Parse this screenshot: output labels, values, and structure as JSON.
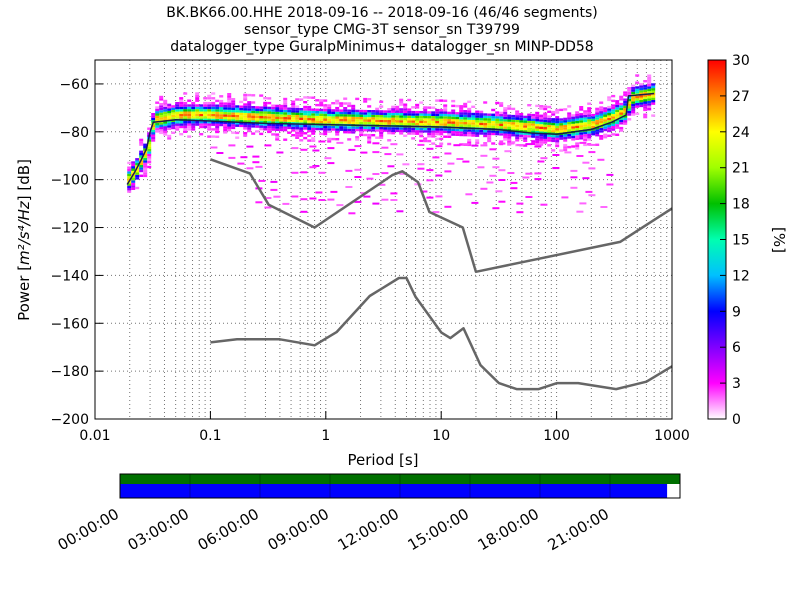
{
  "header": {
    "line1": "BK.BK66.00.HHE   2018-09-16 -- 2018-09-16  (46/46 segments)",
    "line2": "sensor_type CMG-3T sensor_sn T39799",
    "line3": "datalogger_type GuralpMinimus+ datalogger_sn MINP-DD58"
  },
  "chart_data": {
    "type": "heatmap",
    "description_free": true,
    "xlabel": "Period [s]",
    "ylabel_prefix": "Power [",
    "ylabel_math": "m²/s⁴/Hz",
    "ylabel_suffix": "] [dB]",
    "xscale": "log",
    "xlim": [
      0.01,
      1000
    ],
    "ylim": [
      -200,
      -50
    ],
    "x_ticks": [
      0.01,
      0.1,
      1,
      10,
      100,
      1000
    ],
    "x_tick_labels": [
      "0.01",
      "0.1",
      "1",
      "10",
      "100",
      "1000"
    ],
    "y_ticks": [
      -200,
      -180,
      -160,
      -140,
      -120,
      -100,
      -80,
      -60
    ],
    "y_tick_labels": [
      "−200",
      "−180",
      "−160",
      "−140",
      "−120",
      "−100",
      "−80",
      "−60"
    ],
    "grid": true,
    "colorbar": {
      "label": "[%]",
      "range": [
        0,
        30
      ],
      "ticks": [
        0,
        3,
        6,
        9,
        12,
        15,
        18,
        21,
        24,
        27,
        30
      ],
      "tick_labels": [
        "0",
        "3",
        "6",
        "9",
        "12",
        "15",
        "18",
        "21",
        "24",
        "27",
        "30"
      ],
      "colors": [
        "#ffffff",
        "#ff00ff",
        "#8000ff",
        "#0000ff",
        "#00c0ff",
        "#00ffb0",
        "#00c000",
        "#a0ff00",
        "#ffff00",
        "#ff8000",
        "#ff0000"
      ]
    },
    "nhnm": {
      "name": "New High Noise Model",
      "period": [
        0.1,
        0.22,
        0.32,
        0.8,
        3.8,
        4.6,
        6.3,
        7.9,
        15.4,
        20,
        354.8,
        1000
      ],
      "db": [
        -91.5,
        -97.4,
        -110.5,
        -120,
        -98,
        -96.5,
        -101,
        -113.5,
        -120,
        -138.5,
        -126,
        -112
      ]
    },
    "nlnm": {
      "name": "New Low Noise Model",
      "period": [
        0.1,
        0.17,
        0.4,
        0.8,
        1.24,
        2.4,
        4.3,
        5,
        6,
        10,
        12,
        15.6,
        21.9,
        31.6,
        45,
        70,
        101,
        154,
        328,
        600,
        1000
      ],
      "db": [
        -168,
        -166.7,
        -166.7,
        -169.2,
        -163.7,
        -148.6,
        -141.1,
        -141.1,
        -149,
        -163.8,
        -166.2,
        -162.1,
        -177.5,
        -185,
        -187.5,
        -187.5,
        -185,
        -185,
        -187.5,
        -184.4,
        -178
      ]
    },
    "mean_curve": {
      "period": [
        0.019,
        0.022,
        0.025,
        0.028,
        0.03,
        0.032,
        0.05,
        0.1,
        0.3,
        1,
        3,
        10,
        30,
        60,
        100,
        200,
        300,
        400,
        420,
        700
      ],
      "db": [
        -102,
        -97,
        -92,
        -87,
        -80,
        -76,
        -75,
        -75.5,
        -76.5,
        -77,
        -77.5,
        -78,
        -79,
        -80.5,
        -81,
        -79,
        -76,
        -73,
        -65,
        -64
      ]
    },
    "band_centers": {
      "period": [
        0.019,
        0.022,
        0.025,
        0.028,
        0.03,
        0.032,
        0.05,
        0.1,
        0.3,
        1,
        3,
        10,
        30,
        60,
        100,
        200,
        300,
        400,
        420,
        700
      ],
      "db": [
        -100,
        -96,
        -91,
        -87,
        -79,
        -75,
        -73,
        -73,
        -74,
        -75,
        -75.5,
        -76,
        -77,
        -78,
        -79,
        -77,
        -74,
        -71,
        -66,
        -64
      ]
    },
    "outlier_periods": [
      0.03,
      0.05,
      0.1,
      0.3,
      1,
      3,
      10,
      30,
      100,
      200
    ],
    "outlier_levels": [
      -85,
      -89,
      -93,
      -96,
      -100,
      -104,
      -108,
      -112
    ]
  },
  "time_axis": {
    "labels": [
      "00:00:00",
      "03:00:00",
      "06:00:00",
      "09:00:00",
      "12:00:00",
      "15:00:00",
      "18:00:00",
      "21:00:00"
    ],
    "coverage_fraction": 0.977,
    "data_color": "#007000",
    "psd_color": "#0000ff"
  }
}
